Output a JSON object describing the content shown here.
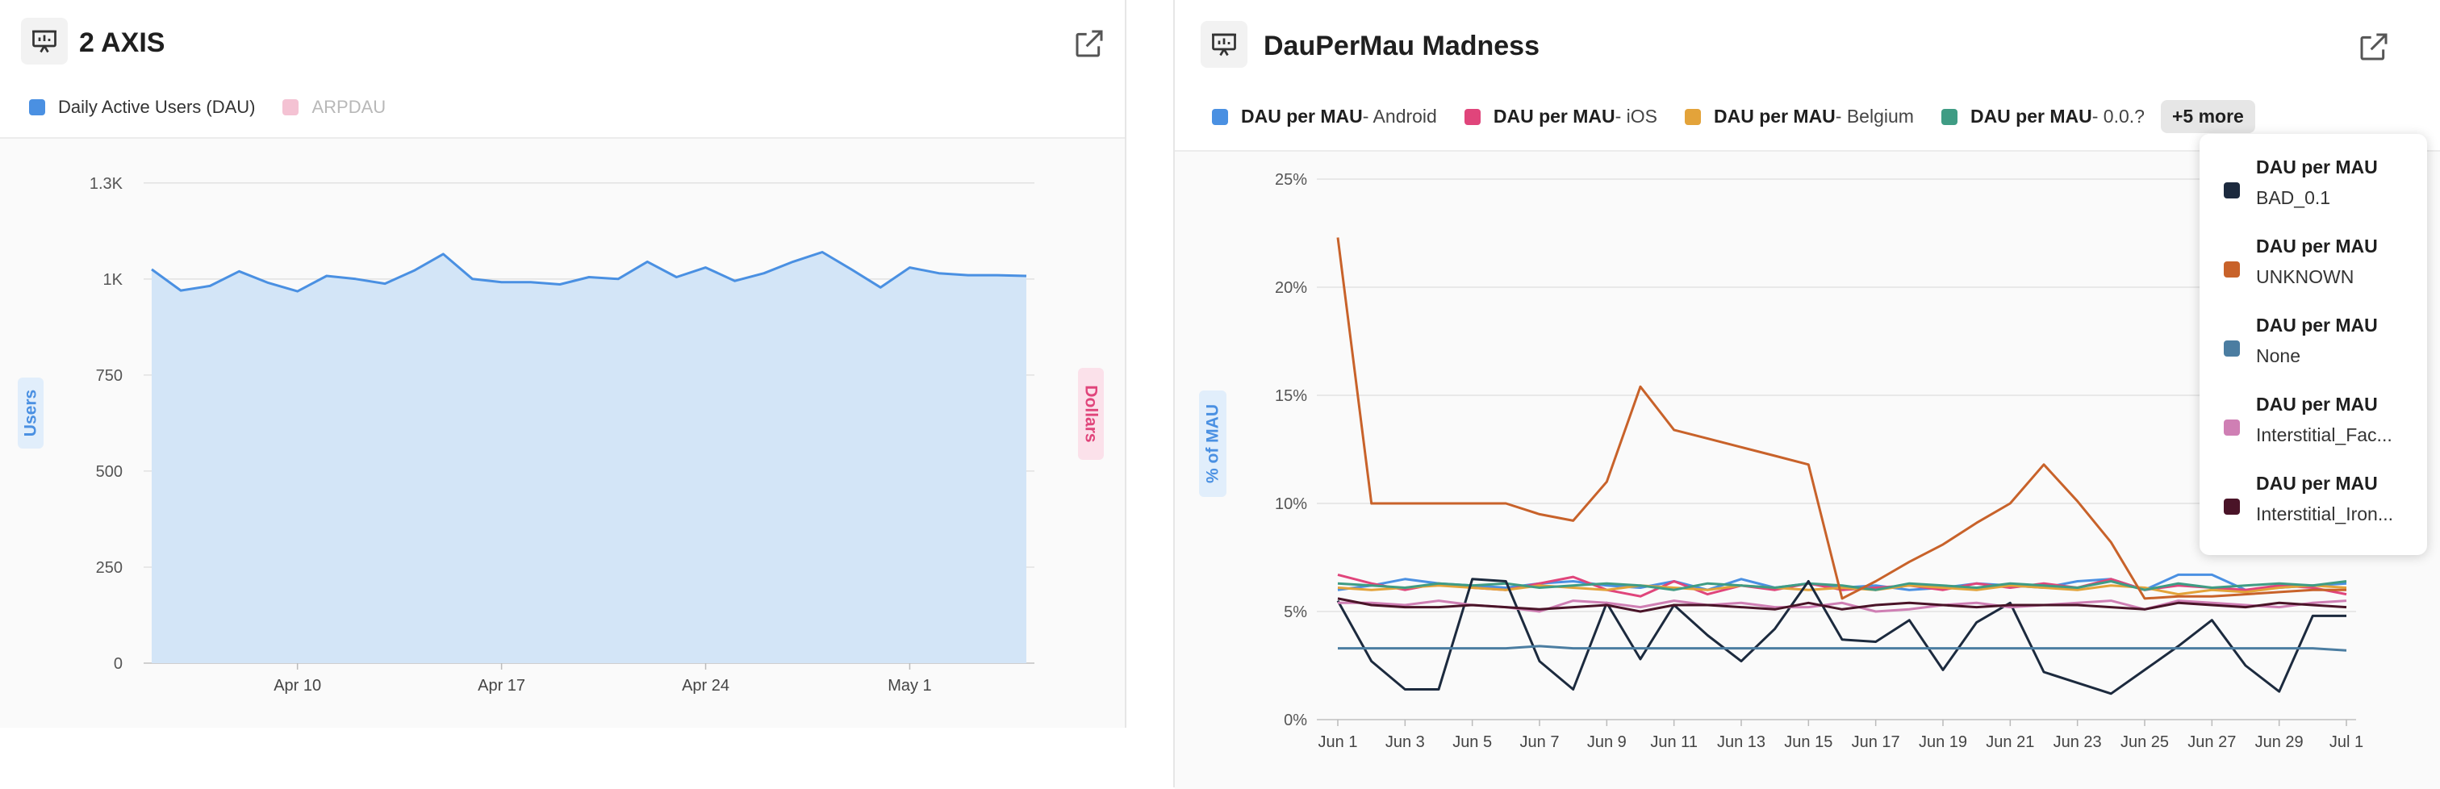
{
  "left_panel": {
    "title": "2 AXIS",
    "legend": [
      {
        "label": "Daily Active Users (DAU)",
        "color": "#4a90e2",
        "active": true
      },
      {
        "label": "ARPDAU",
        "color": "#f4c2d3",
        "active": false
      }
    ],
    "icons": {
      "header": "presentation-chart-icon",
      "open": "external-link-icon"
    }
  },
  "right_panel": {
    "title": "DauPerMau Madness",
    "legend": [
      {
        "bold": "DAU per MAU",
        "suffix": " - Android",
        "color": "#4a90e2"
      },
      {
        "bold": "DAU per MAU",
        "suffix": " - iOS",
        "color": "#e0457b"
      },
      {
        "bold": "DAU per MAU",
        "suffix": " - Belgium",
        "color": "#e3a33a"
      },
      {
        "bold": "DAU per MAU",
        "suffix": " - 0.0.?",
        "color": "#3f9c84"
      }
    ],
    "more_button": "+5 more",
    "popup_items": [
      {
        "title": "DAU per MAU",
        "sub": "BAD_0.1",
        "color": "#1c2a3e"
      },
      {
        "title": "DAU per MAU",
        "sub": "UNKNOWN",
        "color": "#c8622a"
      },
      {
        "title": "DAU per MAU",
        "sub": "None",
        "color": "#4b7da1"
      },
      {
        "title": "DAU per MAU",
        "sub": "Interstitial_Fac...",
        "color": "#cf7fb4"
      },
      {
        "title": "DAU per MAU",
        "sub": "Interstitial_Iron...",
        "color": "#4a1428"
      }
    ],
    "icons": {
      "header": "presentation-chart-icon",
      "open": "external-link-icon"
    }
  },
  "chart_data": [
    {
      "type": "area",
      "title": "2 AXIS",
      "ylabel": "Users",
      "y2label": "Dollars",
      "ylim": [
        0,
        1300
      ],
      "yticks": [
        0,
        250,
        500,
        750,
        1000,
        1250
      ],
      "ytick_labels": [
        "0",
        "250",
        "500",
        "750",
        "1K",
        "1.3K"
      ],
      "xtick_labels": [
        "Apr 10",
        "Apr 17",
        "Apr 24",
        "May 1"
      ],
      "xtick_index": [
        5,
        12,
        19,
        26
      ],
      "series": [
        {
          "name": "Daily Active Users (DAU)",
          "color": "#4a90e2",
          "values": [
            1025,
            970,
            982,
            1020,
            990,
            968,
            1008,
            1000,
            988,
            1022,
            1065,
            1000,
            992,
            992,
            986,
            1005,
            1000,
            1045,
            1005,
            1030,
            995,
            1015,
            1045,
            1070,
            1025,
            978,
            1030,
            1015,
            1010,
            1010,
            1008
          ]
        }
      ]
    },
    {
      "type": "line",
      "title": "DauPerMau Madness",
      "ylabel": "% of MAU",
      "ylim": [
        0,
        25
      ],
      "yticks": [
        0,
        5,
        10,
        15,
        20,
        25
      ],
      "ytick_labels": [
        "0%",
        "5%",
        "10%",
        "15%",
        "20%",
        "25%"
      ],
      "xtick_labels": [
        "Jun 1",
        "Jun 3",
        "Jun 5",
        "Jun 7",
        "Jun 9",
        "Jun 11",
        "Jun 13",
        "Jun 15",
        "Jun 17",
        "Jun 19",
        "Jun 21",
        "Jun 23",
        "Jun 25",
        "Jun 27",
        "Jun 29",
        "Jul 1"
      ],
      "xtick_index": [
        0,
        2,
        4,
        6,
        8,
        10,
        12,
        14,
        16,
        18,
        20,
        22,
        24,
        26,
        28,
        30
      ],
      "series": [
        {
          "name": "DAU per MAU - Android",
          "color": "#4a90e2",
          "values": [
            6.0,
            6.2,
            6.5,
            6.3,
            6.2,
            6.1,
            6.3,
            6.4,
            6.2,
            6.1,
            6.4,
            6.0,
            6.5,
            6.1,
            6.3,
            6.1,
            6.2,
            6.0,
            6.1,
            6.3,
            6.2,
            6.1,
            6.4,
            6.5,
            6.0,
            6.7,
            6.7,
            6.0,
            6.1,
            6.2,
            6.3
          ]
        },
        {
          "name": "DAU per MAU - iOS",
          "color": "#e0457b",
          "values": [
            6.7,
            6.3,
            6.0,
            6.3,
            6.1,
            6.0,
            6.3,
            6.6,
            6.0,
            5.7,
            6.4,
            5.8,
            6.2,
            6.0,
            6.3,
            6.0,
            6.1,
            6.2,
            6.0,
            6.3,
            6.1,
            6.3,
            6.1,
            6.5,
            6.0,
            6.2,
            6.1,
            6.0,
            6.2,
            6.1,
            5.8
          ]
        },
        {
          "name": "DAU per MAU - Belgium",
          "color": "#e3a33a",
          "values": [
            6.1,
            6.0,
            6.1,
            6.2,
            6.1,
            6.0,
            6.2,
            6.1,
            6.0,
            6.2,
            6.1,
            6.0,
            6.2,
            6.1,
            6.0,
            6.1,
            6.0,
            6.2,
            6.1,
            6.0,
            6.2,
            6.1,
            6.0,
            6.2,
            6.1,
            5.8,
            6.0,
            5.9,
            6.1,
            6.2,
            6.1
          ]
        },
        {
          "name": "DAU per MAU - 0.0.?",
          "color": "#3f9c84",
          "values": [
            6.3,
            6.2,
            6.1,
            6.3,
            6.2,
            6.3,
            6.1,
            6.2,
            6.3,
            6.2,
            6.0,
            6.3,
            6.2,
            6.1,
            6.3,
            6.2,
            6.0,
            6.3,
            6.2,
            6.1,
            6.3,
            6.2,
            6.1,
            6.4,
            6.0,
            6.3,
            6.1,
            6.2,
            6.3,
            6.2,
            6.4
          ]
        },
        {
          "name": "DAU per MAU - BAD_0.1",
          "color": "#1c2a3e",
          "values": [
            5.5,
            2.7,
            1.4,
            1.4,
            6.5,
            6.4,
            2.7,
            1.4,
            5.4,
            2.8,
            5.3,
            3.9,
            2.7,
            4.2,
            6.4,
            3.7,
            3.6,
            4.6,
            2.3,
            4.5,
            5.4,
            2.2,
            1.7,
            1.2,
            2.3,
            3.4,
            4.6,
            2.5,
            1.3,
            4.8,
            4.8
          ]
        },
        {
          "name": "DAU per MAU - UNKNOWN",
          "color": "#c8622a",
          "values": [
            22.3,
            10.0,
            10.0,
            10.0,
            10.0,
            10.0,
            9.5,
            9.2,
            11.0,
            15.4,
            13.4,
            13.0,
            12.6,
            12.2,
            11.8,
            5.6,
            6.4,
            7.3,
            8.1,
            9.1,
            10.0,
            11.8,
            10.1,
            8.2,
            5.6,
            5.7,
            5.7,
            5.8,
            5.9,
            6.0,
            6.0
          ]
        },
        {
          "name": "DAU per MAU - None",
          "color": "#4b7da1",
          "values": [
            3.3,
            3.3,
            3.3,
            3.3,
            3.3,
            3.3,
            3.4,
            3.3,
            3.3,
            3.3,
            3.3,
            3.3,
            3.3,
            3.3,
            3.3,
            3.3,
            3.3,
            3.3,
            3.3,
            3.3,
            3.3,
            3.3,
            3.3,
            3.3,
            3.3,
            3.3,
            3.3,
            3.3,
            3.3,
            3.3,
            3.2
          ]
        },
        {
          "name": "DAU per MAU - Interstitial_Fac...",
          "color": "#cf7fb4",
          "values": [
            5.4,
            5.4,
            5.3,
            5.5,
            5.3,
            5.2,
            5.0,
            5.5,
            5.4,
            5.2,
            5.5,
            5.3,
            5.4,
            5.2,
            5.2,
            5.4,
            5.0,
            5.1,
            5.3,
            5.4,
            5.2,
            5.3,
            5.4,
            5.5,
            5.1,
            5.5,
            5.4,
            5.3,
            5.2,
            5.4,
            5.5
          ]
        },
        {
          "name": "DAU per MAU - Interstitial_Iron...",
          "color": "#4a1428",
          "values": [
            5.6,
            5.3,
            5.2,
            5.2,
            5.3,
            5.2,
            5.1,
            5.2,
            5.3,
            5.0,
            5.3,
            5.3,
            5.2,
            5.1,
            5.4,
            5.1,
            5.3,
            5.4,
            5.3,
            5.2,
            5.3,
            5.3,
            5.3,
            5.2,
            5.1,
            5.4,
            5.3,
            5.2,
            5.4,
            5.3,
            5.2
          ]
        }
      ]
    }
  ]
}
